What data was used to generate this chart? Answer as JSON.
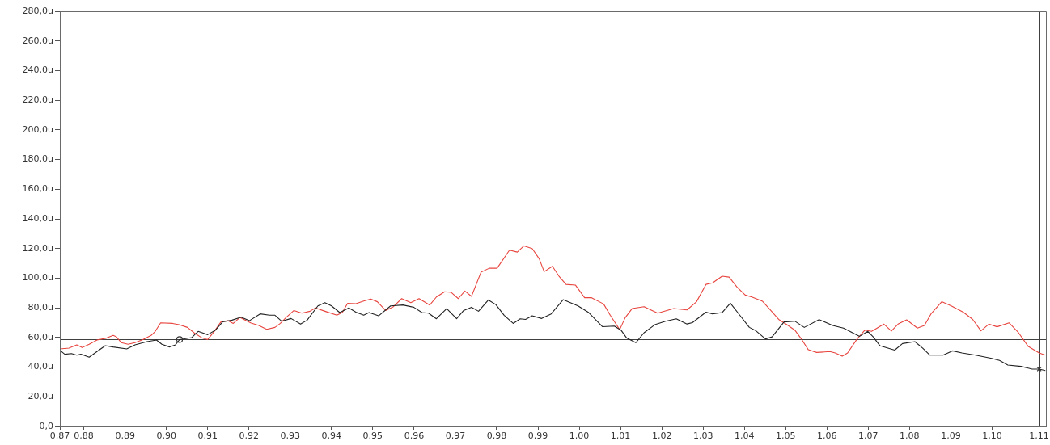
{
  "chart_data": {
    "type": "line",
    "xlim": [
      0.8742,
      1.1131
    ],
    "ylim": [
      0,
      280
    ],
    "xticks": [
      {
        "value": 0.8742,
        "label": "0,87"
      },
      {
        "value": 0.88,
        "label": "0,88"
      },
      {
        "value": 0.89,
        "label": "0,89"
      },
      {
        "value": 0.9,
        "label": "0,90"
      },
      {
        "value": 0.91,
        "label": "0,91"
      },
      {
        "value": 0.92,
        "label": "0,92"
      },
      {
        "value": 0.93,
        "label": "0,93"
      },
      {
        "value": 0.94,
        "label": "0,94"
      },
      {
        "value": 0.95,
        "label": "0,95"
      },
      {
        "value": 0.96,
        "label": "0,96"
      },
      {
        "value": 0.97,
        "label": "0,97"
      },
      {
        "value": 0.98,
        "label": "0,98"
      },
      {
        "value": 0.99,
        "label": "0,99"
      },
      {
        "value": 1.0,
        "label": "1,00"
      },
      {
        "value": 1.01,
        "label": "1,01"
      },
      {
        "value": 1.02,
        "label": "1,02"
      },
      {
        "value": 1.03,
        "label": "1,03"
      },
      {
        "value": 1.04,
        "label": "1,04"
      },
      {
        "value": 1.05,
        "label": "1,05"
      },
      {
        "value": 1.06,
        "label": "1,06"
      },
      {
        "value": 1.07,
        "label": "1,07"
      },
      {
        "value": 1.08,
        "label": "1,08"
      },
      {
        "value": 1.09,
        "label": "1,09"
      },
      {
        "value": 1.1,
        "label": "1,10"
      },
      {
        "value": 1.1114,
        "label": "1,11"
      }
    ],
    "yticks": [
      {
        "value": 0,
        "label": "0,0"
      },
      {
        "value": 20,
        "label": "20,0u"
      },
      {
        "value": 40,
        "label": "40,0u"
      },
      {
        "value": 60,
        "label": "60,0u"
      },
      {
        "value": 80,
        "label": "80,0u"
      },
      {
        "value": 100,
        "label": "100,0u"
      },
      {
        "value": 120,
        "label": "120,0u"
      },
      {
        "value": 140,
        "label": "140,0u"
      },
      {
        "value": 160,
        "label": "160,0u"
      },
      {
        "value": 180,
        "label": "180,0u"
      },
      {
        "value": 200,
        "label": "200,0u"
      },
      {
        "value": 220,
        "label": "220,0u"
      },
      {
        "value": 240,
        "label": "240,0u"
      },
      {
        "value": 260,
        "label": "260,0u"
      },
      {
        "value": 280,
        "label": "280,0u"
      }
    ],
    "grid": false,
    "legend": false,
    "marker": "none",
    "line_style": "solid",
    "ref_lines": [
      {
        "axis": "x",
        "value": 0.9032,
        "color": "#404040"
      },
      {
        "axis": "x",
        "value": 1.1114,
        "color": "#404040"
      },
      {
        "axis": "y",
        "value": 58.6,
        "color": "#404040"
      }
    ],
    "series": [
      {
        "color": "#e8453f",
        "x": [
          0.8742,
          0.8764,
          0.8783,
          0.8796,
          0.8813,
          0.8832,
          0.8855,
          0.8871,
          0.8879,
          0.8891,
          0.8907,
          0.8924,
          0.8943,
          0.8963,
          0.8973,
          0.8986,
          0.9015,
          0.9031,
          0.9051,
          0.9067,
          0.9087,
          0.91,
          0.9116,
          0.9132,
          0.9149,
          0.9162,
          0.9178,
          0.9204,
          0.9224,
          0.9243,
          0.9263,
          0.9276,
          0.9289,
          0.9309,
          0.9328,
          0.9348,
          0.9361,
          0.9384,
          0.9413,
          0.9426,
          0.9439,
          0.9459,
          0.9478,
          0.9495,
          0.9511,
          0.9531,
          0.955,
          0.957,
          0.9592,
          0.9612,
          0.9638,
          0.9654,
          0.9674,
          0.969,
          0.9707,
          0.9723,
          0.9739,
          0.9762,
          0.9782,
          0.9801,
          0.9831,
          0.985,
          0.9866,
          0.9886,
          0.9903,
          0.9915,
          0.9935,
          0.9951,
          0.9968,
          0.9991,
          1.0013,
          1.003,
          1.0059,
          1.0075,
          1.0098,
          1.0111,
          1.0128,
          1.0157,
          1.019,
          1.0229,
          1.0261,
          1.0284,
          1.0307,
          1.0323,
          1.0346,
          1.0363,
          1.0382,
          1.0402,
          1.0418,
          1.0444,
          1.046,
          1.0483,
          1.0503,
          1.0522,
          1.0539,
          1.0555,
          1.0575,
          1.0607,
          1.062,
          1.0637,
          1.065,
          1.0672,
          1.0692,
          1.0708,
          1.0738,
          1.0756,
          1.0772,
          1.0793,
          1.0819,
          1.0836,
          1.0852,
          1.0878,
          1.0901,
          1.093,
          1.0953,
          1.0973,
          1.0992,
          1.1012,
          1.1041,
          1.1064,
          1.1087,
          1.1114,
          1.1129
        ],
        "values": [
          52.3,
          52.8,
          55.0,
          53.2,
          55.4,
          58.3,
          59.6,
          61.4,
          60.4,
          56.5,
          55.4,
          56.5,
          58.6,
          61.4,
          64.1,
          69.9,
          69.5,
          68.6,
          66.8,
          63.2,
          59.6,
          58.6,
          64.1,
          70.5,
          71.3,
          69.5,
          73.5,
          69.9,
          68.1,
          65.5,
          66.8,
          69.5,
          73.2,
          78.2,
          76.4,
          77.7,
          79.9,
          77.7,
          75.0,
          76.8,
          83.1,
          82.8,
          84.6,
          85.9,
          84.1,
          78.2,
          80.8,
          86.2,
          83.5,
          86.2,
          81.9,
          87.3,
          90.8,
          90.4,
          86.2,
          91.3,
          87.7,
          104.0,
          106.7,
          106.7,
          118.9,
          117.6,
          121.8,
          120.0,
          113.1,
          104.4,
          108.0,
          101.3,
          95.8,
          95.3,
          86.8,
          86.8,
          82.6,
          75.0,
          65.3,
          73.2,
          79.5,
          80.8,
          76.4,
          79.5,
          78.6,
          84.1,
          95.8,
          96.8,
          101.3,
          100.7,
          94.0,
          88.6,
          87.3,
          84.4,
          79.5,
          72.2,
          68.6,
          65.0,
          58.6,
          51.7,
          49.9,
          50.5,
          49.6,
          47.4,
          49.6,
          58.6,
          65.0,
          64.1,
          69.0,
          64.3,
          69.0,
          71.9,
          66.3,
          68.1,
          75.9,
          84.1,
          81.3,
          77.1,
          72.2,
          64.5,
          69.0,
          67.2,
          69.9,
          63.2,
          54.1,
          49.6,
          48.1
        ]
      },
      {
        "color": "#222222",
        "x": [
          0.8742,
          0.8754,
          0.877,
          0.8783,
          0.8793,
          0.8813,
          0.8832,
          0.8852,
          0.8871,
          0.8904,
          0.8924,
          0.8953,
          0.8976,
          0.8989,
          0.9008,
          0.9022,
          0.9032,
          0.9061,
          0.9077,
          0.91,
          0.9119,
          0.9136,
          0.9159,
          0.9181,
          0.9201,
          0.9227,
          0.925,
          0.9263,
          0.9279,
          0.9302,
          0.9325,
          0.9341,
          0.9367,
          0.9384,
          0.94,
          0.942,
          0.9442,
          0.9459,
          0.9478,
          0.9491,
          0.9514,
          0.9543,
          0.9573,
          0.9599,
          0.9619,
          0.9635,
          0.9654,
          0.9679,
          0.9703,
          0.972,
          0.9739,
          0.9756,
          0.978,
          0.9798,
          0.9818,
          0.984,
          0.9857,
          0.987,
          0.9886,
          0.9909,
          0.9932,
          0.9961,
          0.9997,
          1.0023,
          1.0056,
          1.0085,
          1.0101,
          1.0115,
          1.0137,
          1.0157,
          1.0183,
          1.0209,
          1.0235,
          1.0261,
          1.0274,
          1.0307,
          1.0323,
          1.0346,
          1.0366,
          1.0385,
          1.0412,
          1.0428,
          1.0451,
          1.0467,
          1.0496,
          1.0522,
          1.0545,
          1.0581,
          1.0614,
          1.064,
          1.0679,
          1.0699,
          1.0712,
          1.0728,
          1.0764,
          1.0783,
          1.0813,
          1.0832,
          1.0849,
          1.0881,
          1.0904,
          1.0927,
          1.096,
          1.0999,
          1.1018,
          1.1038,
          1.107,
          1.1097,
          1.1114,
          1.1129
        ],
        "values": [
          51.4,
          48.7,
          49.2,
          48.1,
          48.7,
          46.7,
          50.5,
          54.5,
          53.6,
          52.3,
          55.0,
          57.2,
          58.3,
          55.4,
          53.6,
          55.0,
          58.6,
          59.9,
          64.1,
          61.9,
          65.0,
          70.5,
          71.7,
          73.7,
          71.3,
          75.9,
          75.0,
          75.0,
          71.0,
          72.8,
          69.1,
          71.7,
          81.3,
          83.5,
          81.3,
          76.8,
          79.9,
          77.1,
          75.0,
          76.8,
          74.6,
          81.3,
          81.9,
          80.4,
          76.8,
          76.4,
          72.6,
          79.5,
          72.6,
          78.2,
          80.4,
          77.7,
          85.3,
          82.2,
          75.0,
          69.5,
          72.6,
          72.2,
          74.6,
          72.8,
          75.9,
          85.5,
          81.3,
          76.8,
          67.3,
          67.7,
          65.0,
          59.6,
          56.5,
          63.2,
          68.6,
          71.0,
          72.6,
          69.1,
          70.0,
          77.1,
          75.9,
          76.8,
          83.1,
          76.4,
          66.8,
          64.5,
          59.0,
          60.4,
          70.5,
          71.0,
          66.8,
          72.1,
          68.1,
          66.3,
          60.8,
          64.1,
          60.4,
          54.5,
          51.5,
          55.9,
          57.2,
          52.8,
          48.1,
          48.1,
          51.0,
          49.6,
          48.1,
          45.9,
          44.5,
          41.4,
          40.5,
          38.7,
          38.7,
          37.7
        ]
      },
      {
        "type": "scatter",
        "color": "#333333",
        "marker": "circle",
        "x": [
          0.9032
        ],
        "values": [
          58.6
        ]
      },
      {
        "type": "scatter",
        "color": "#333333",
        "marker": "cross",
        "x": [
          1.1114
        ],
        "values": [
          38.7
        ]
      }
    ]
  }
}
